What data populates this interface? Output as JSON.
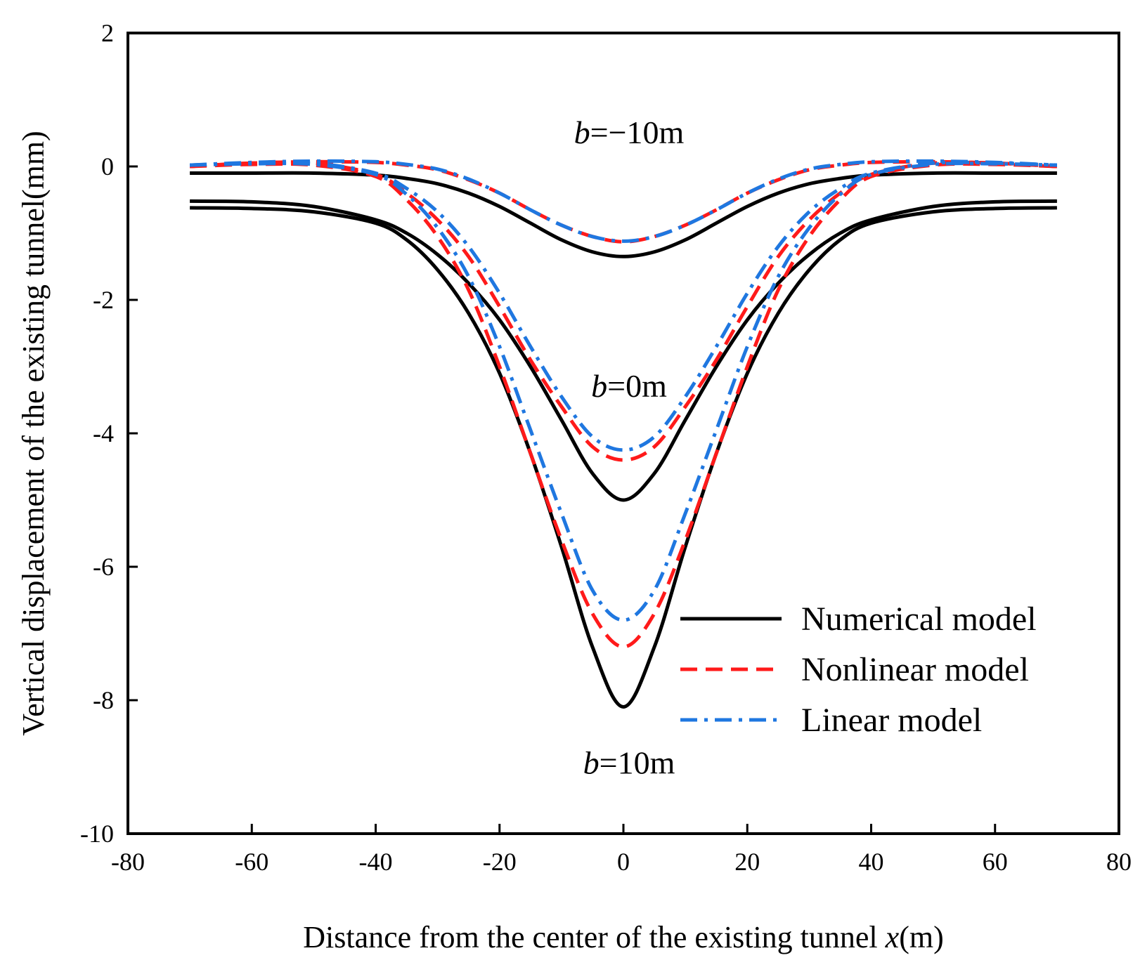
{
  "chart_data": {
    "type": "line",
    "title": "",
    "xlabel": "Distance from the center of the existing tunnel ",
    "xlabel_var": "x",
    "xlabel_unit": "(m)",
    "ylabel": "Vertical displacement of the existing tunnel(mm)",
    "xlim": [
      -80,
      80
    ],
    "ylim": [
      -10,
      2
    ],
    "xticks": [
      -80,
      -60,
      -40,
      -20,
      0,
      20,
      40,
      60,
      80
    ],
    "yticks": [
      2,
      0,
      -2,
      -4,
      -6,
      -8,
      -10
    ],
    "xtick_labels": [
      "-80",
      "-60",
      "-40",
      "-20",
      "0",
      "20",
      "40",
      "60",
      "80"
    ],
    "ytick_labels": [
      "2",
      "0",
      "-2",
      "-4",
      "-6",
      "-8",
      "-10"
    ],
    "grid": false,
    "legend_position": "bottom-right",
    "x": [
      -70,
      -60,
      -50,
      -40,
      -35,
      -30,
      -25,
      -20,
      -15,
      -10,
      -5,
      0,
      5,
      10,
      15,
      20,
      25,
      30,
      35,
      40,
      50,
      60,
      70
    ],
    "series": [
      {
        "name": "Numerical model",
        "case": "b=−10m",
        "style": "solid",
        "color": "#000000",
        "values": [
          -0.1,
          -0.1,
          -0.1,
          -0.13,
          -0.18,
          -0.26,
          -0.4,
          -0.6,
          -0.85,
          -1.1,
          -1.28,
          -1.35,
          -1.28,
          -1.1,
          -0.85,
          -0.6,
          -0.4,
          -0.26,
          -0.18,
          -0.13,
          -0.1,
          -0.1,
          -0.1
        ]
      },
      {
        "name": "Numerical model",
        "case": "b=0m",
        "style": "solid",
        "color": "#000000",
        "values": [
          -0.52,
          -0.53,
          -0.6,
          -0.8,
          -1.0,
          -1.32,
          -1.75,
          -2.3,
          -3.0,
          -3.8,
          -4.6,
          -5.0,
          -4.6,
          -3.8,
          -3.0,
          -2.3,
          -1.75,
          -1.32,
          -1.0,
          -0.8,
          -0.6,
          -0.53,
          -0.52
        ]
      },
      {
        "name": "Numerical model",
        "case": "b=10m",
        "style": "solid",
        "color": "#000000",
        "values": [
          -0.62,
          -0.63,
          -0.68,
          -0.85,
          -1.1,
          -1.55,
          -2.2,
          -3.1,
          -4.3,
          -5.7,
          -7.2,
          -8.1,
          -7.2,
          -5.7,
          -4.3,
          -3.1,
          -2.2,
          -1.55,
          -1.1,
          -0.85,
          -0.68,
          -0.63,
          -0.62
        ]
      },
      {
        "name": "Nonlinear model",
        "case": "b=−10m",
        "style": "dashed",
        "color": "#ff1a1a",
        "values": [
          0.0,
          0.05,
          0.07,
          0.06,
          0.02,
          -0.05,
          -0.2,
          -0.4,
          -0.65,
          -0.88,
          -1.05,
          -1.13,
          -1.05,
          -0.88,
          -0.65,
          -0.4,
          -0.2,
          -0.05,
          0.02,
          0.06,
          0.07,
          0.05,
          0.0
        ]
      },
      {
        "name": "Nonlinear model",
        "case": "b=0m",
        "style": "dashed",
        "color": "#ff1a1a",
        "values": [
          0.0,
          0.05,
          0.05,
          -0.12,
          -0.4,
          -0.8,
          -1.35,
          -2.1,
          -2.9,
          -3.6,
          -4.2,
          -4.4,
          -4.2,
          -3.6,
          -2.9,
          -2.1,
          -1.35,
          -0.8,
          -0.4,
          -0.12,
          0.05,
          0.05,
          0.0
        ]
      },
      {
        "name": "Nonlinear model",
        "case": "b=10m",
        "style": "dashed",
        "color": "#ff1a1a",
        "values": [
          0.0,
          0.03,
          0.02,
          -0.15,
          -0.5,
          -1.05,
          -1.85,
          -3.0,
          -4.3,
          -5.6,
          -6.7,
          -7.2,
          -6.7,
          -5.6,
          -4.3,
          -3.0,
          -1.85,
          -1.05,
          -0.5,
          -0.15,
          0.02,
          0.03,
          0.0
        ]
      },
      {
        "name": "Linear model",
        "case": "b=−10m",
        "style": "dashdot",
        "color": "#1f77e0",
        "values": [
          0.02,
          0.06,
          0.08,
          0.07,
          0.03,
          -0.04,
          -0.19,
          -0.4,
          -0.65,
          -0.88,
          -1.05,
          -1.12,
          -1.05,
          -0.88,
          -0.65,
          -0.4,
          -0.19,
          -0.04,
          0.03,
          0.07,
          0.08,
          0.06,
          0.02
        ]
      },
      {
        "name": "Linear model",
        "case": "b=0m",
        "style": "dashdot",
        "color": "#1f77e0",
        "values": [
          0.02,
          0.05,
          0.05,
          -0.1,
          -0.33,
          -0.68,
          -1.2,
          -1.9,
          -2.7,
          -3.45,
          -4.05,
          -4.25,
          -4.05,
          -3.45,
          -2.7,
          -1.9,
          -1.2,
          -0.68,
          -0.33,
          -0.1,
          0.05,
          0.05,
          0.02
        ]
      },
      {
        "name": "Linear model",
        "case": "b=10m",
        "style": "dashdot",
        "color": "#1f77e0",
        "values": [
          0.02,
          0.04,
          0.03,
          -0.12,
          -0.42,
          -0.92,
          -1.65,
          -2.7,
          -3.95,
          -5.2,
          -6.35,
          -6.8,
          -6.35,
          -5.2,
          -3.95,
          -2.7,
          -1.65,
          -0.92,
          -0.42,
          -0.12,
          0.03,
          0.04,
          0.02
        ]
      }
    ],
    "annotations": [
      {
        "var": "b",
        "rest": "=−10m",
        "x": 0,
        "y": 0.35
      },
      {
        "var": "b",
        "rest": "=0m",
        "x": 0,
        "y": -3.45
      },
      {
        "var": "b",
        "rest": "=10m",
        "x": 0,
        "y": -9.1
      }
    ],
    "legend": [
      {
        "label": "Numerical model",
        "style": "solid",
        "color": "#000000"
      },
      {
        "label": "Nonlinear model",
        "style": "dashed",
        "color": "#ff1a1a"
      },
      {
        "label": "Linear model",
        "style": "dashdot",
        "color": "#1f77e0"
      }
    ]
  }
}
